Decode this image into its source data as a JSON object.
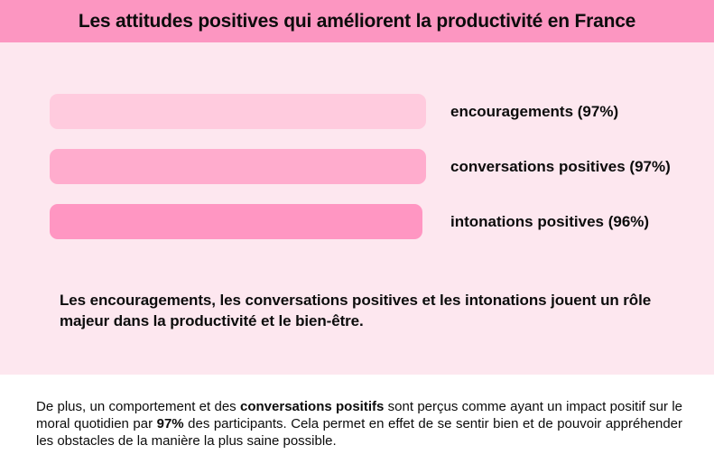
{
  "theme": {
    "header_bg": "#FC96C1",
    "chart_bg": "#FDE7EF",
    "footer_bg": "#FFFFFF",
    "text_color": "#0C0C0C"
  },
  "header": {
    "title": "Les attitudes positives qui améliorent la productivité en France"
  },
  "chart_data": {
    "type": "bar",
    "orientation": "horizontal",
    "title": "Les attitudes positives qui améliorent la productivité en France",
    "categories": [
      "encouragements",
      "conversations positives",
      "intonations positives"
    ],
    "values": [
      97,
      97,
      96
    ],
    "unit": "%",
    "xlim": [
      0,
      100
    ],
    "grid": false,
    "legend": "none",
    "labels_position": "right-of-bars",
    "bars": [
      {
        "label": "encouragements (97%)",
        "value": 97,
        "color": "#FFCBDE"
      },
      {
        "label": "conversations positives (97%)",
        "value": 97,
        "color": "#FFACCD"
      },
      {
        "label": "intonations positives (96%)",
        "value": 96,
        "color": "#FF96C2"
      }
    ]
  },
  "caption": {
    "text": "Les encouragements, les conversations positives et les intonations jouent un rôle majeur dans la productivité et le bien-être."
  },
  "footer": {
    "segments": [
      {
        "text": "De plus, un comportement et des "
      },
      {
        "text": "conversations positifs"
      },
      {
        "text": " sont perçus comme ayant un impact positif sur le moral quotidien par "
      },
      {
        "text": "97%"
      },
      {
        "text": " des participants. Cela permet en effet de se sentir bien et de pouvoir appréhender les obstacles de la manière la plus saine possible."
      }
    ]
  }
}
